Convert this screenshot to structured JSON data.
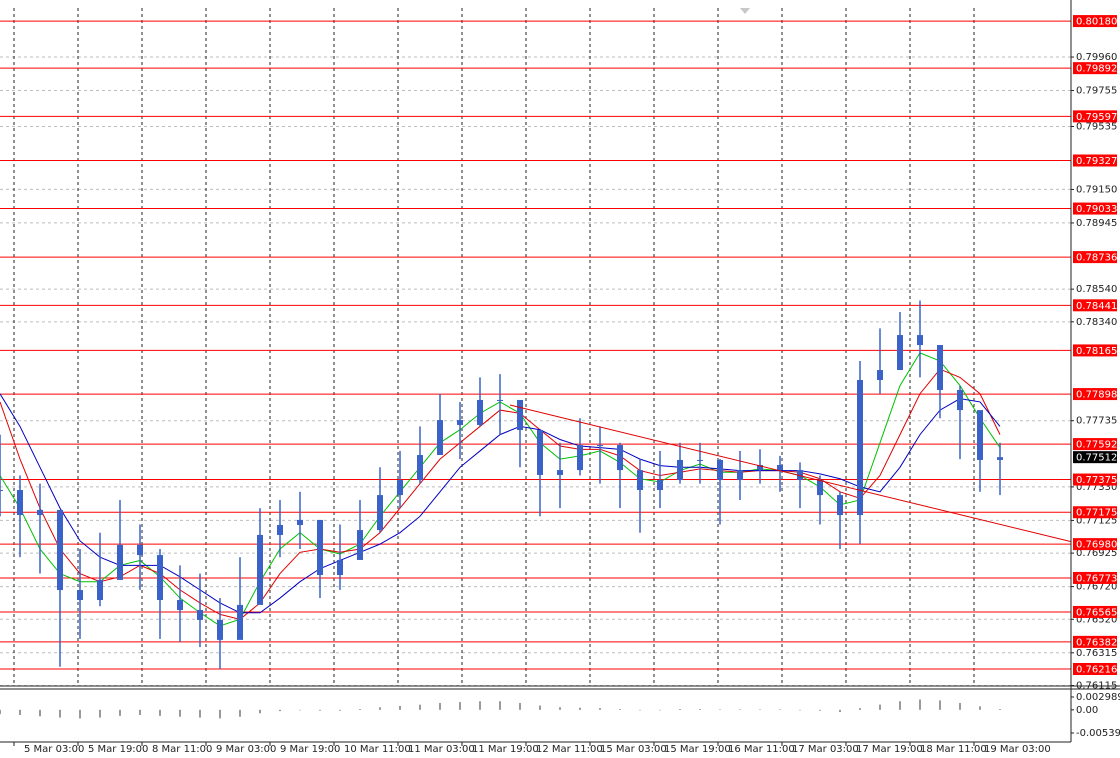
{
  "chart_data": {
    "type": "candlestick",
    "xlim": [
      0,
      53.55
    ],
    "xticks": [
      {
        "value": 0.7,
        "label": "5 Mar 03:00"
      },
      {
        "value": 3.9,
        "label": "5 Mar 19:00"
      },
      {
        "value": 7.1,
        "label": "8 Mar 11:00"
      },
      {
        "value": 10.3,
        "label": "9 Mar 03:00"
      },
      {
        "value": 13.5,
        "label": "9 Mar 19:00"
      },
      {
        "value": 16.7,
        "label": "10 Mar 11:00"
      },
      {
        "value": 19.9,
        "label": "11 Mar 03:00"
      },
      {
        "value": 23.1,
        "label": "11 Mar 19:00"
      },
      {
        "value": 26.3,
        "label": "12 Mar 11:00"
      },
      {
        "value": 29.5,
        "label": "15 Mar 03:00"
      },
      {
        "value": 32.7,
        "label": "15 Mar 19:00"
      },
      {
        "value": 35.9,
        "label": "16 Mar 11:00"
      },
      {
        "value": 39.1,
        "label": "17 Mar 03:00"
      },
      {
        "value": 42.3,
        "label": "17 Mar 19:00"
      },
      {
        "value": 45.5,
        "label": "18 Mar 11:00"
      },
      {
        "value": 48.7,
        "label": "19 Mar 03:00"
      }
    ],
    "ylim": [
      0.76115,
      0.8026
    ],
    "yticks": [
      {
        "value": 0.7996,
        "label": "0.79960"
      },
      0.79755,
      0.79535,
      {
        "value": 0.7915,
        "label": "0.79150"
      },
      0.78945,
      {
        "value": 0.7854,
        "label": "0.78540"
      },
      {
        "value": 0.7834,
        "label": "0.78340"
      },
      0.77735,
      {
        "value": 0.7733,
        "label": "0.77330"
      },
      0.77125,
      0.76925,
      {
        "value": 0.7672,
        "label": "0.76720"
      },
      {
        "value": 0.7652,
        "label": "0.76520"
      },
      0.76315,
      0.76115
    ],
    "grid": true,
    "series": [
      {
        "color": "#3a62c8",
        "close": [
          0.77311,
          0.77158,
          0.77189,
          0.76699,
          0.76638,
          0.76761,
          0.76975,
          0.76913,
          0.76638,
          0.76577,
          0.76516,
          0.76394,
          0.76608,
          0.77036,
          0.77097,
          0.77128,
          0.76791,
          0.76883,
          0.77066,
          0.7728,
          0.77372,
          0.77525,
          0.77739,
          0.77709,
          0.77862,
          0.77862,
          0.77678,
          0.77403,
          0.77433,
          0.77586,
          0.77586,
          0.77433,
          0.77311,
          0.77372,
          0.77495,
          0.77495,
          0.77372,
          0.77433,
          0.77464,
          0.77433,
          0.77372,
          0.7728,
          0.77158,
          0.77984,
          0.78045,
          0.78259,
          0.78198,
          0.77923,
          0.778,
          0.77495,
          0.77512
        ],
        "high": [
          0.7765,
          0.774,
          0.7735,
          0.7705,
          0.7695,
          0.7705,
          0.7725,
          0.771,
          0.7695,
          0.7685,
          0.768,
          0.7665,
          0.769,
          0.772,
          0.7725,
          0.773,
          0.7705,
          0.771,
          0.7725,
          0.7745,
          0.7755,
          0.777,
          0.779,
          0.7785,
          0.78,
          0.7802,
          0.7785,
          0.776,
          0.776,
          0.7775,
          0.777,
          0.776,
          0.775,
          0.7755,
          0.776,
          0.776,
          0.775,
          0.7755,
          0.7756,
          0.7752,
          0.7748,
          0.774,
          0.773,
          0.781,
          0.783,
          0.784,
          0.7847,
          0.7815,
          0.7795,
          0.777,
          0.776
        ],
        "low": [
          0.7715,
          0.769,
          0.768,
          0.7623,
          0.764,
          0.766,
          0.768,
          0.767,
          0.764,
          0.7638,
          0.7635,
          0.76216,
          0.7645,
          0.767,
          0.769,
          0.7695,
          0.7665,
          0.767,
          0.769,
          0.7705,
          0.772,
          0.7735,
          0.7755,
          0.775,
          0.777,
          0.7765,
          0.7745,
          0.7715,
          0.772,
          0.774,
          0.7735,
          0.772,
          0.7705,
          0.772,
          0.7735,
          0.7735,
          0.771,
          0.7725,
          0.7735,
          0.773,
          0.772,
          0.771,
          0.7695,
          0.7698,
          0.779,
          0.781,
          0.78,
          0.7775,
          0.775,
          0.773,
          0.7728
        ]
      }
    ],
    "moving_averages": [
      {
        "color": "#00c000",
        "values": [
          0.774,
          0.772,
          0.7695,
          0.768,
          0.7675,
          0.7675,
          0.7685,
          0.7688,
          0.7678,
          0.7665,
          0.7656,
          0.7648,
          0.7652,
          0.7675,
          0.7695,
          0.7705,
          0.7695,
          0.7692,
          0.7698,
          0.7715,
          0.773,
          0.7745,
          0.776,
          0.7768,
          0.7778,
          0.7785,
          0.7778,
          0.776,
          0.775,
          0.7752,
          0.7755,
          0.7748,
          0.7738,
          0.7736,
          0.7743,
          0.7747,
          0.7742,
          0.7742,
          0.7744,
          0.7743,
          0.774,
          0.7733,
          0.7722,
          0.7725,
          0.776,
          0.7795,
          0.7815,
          0.781,
          0.7795,
          0.7775,
          0.7757
        ]
      },
      {
        "color": "#e00000",
        "values": [
          0.7785,
          0.775,
          0.772,
          0.7695,
          0.768,
          0.7675,
          0.7678,
          0.7685,
          0.768,
          0.767,
          0.7662,
          0.7655,
          0.7652,
          0.7662,
          0.768,
          0.7693,
          0.7695,
          0.7693,
          0.7695,
          0.7705,
          0.772,
          0.7735,
          0.775,
          0.776,
          0.777,
          0.778,
          0.7778,
          0.7768,
          0.7758,
          0.7756,
          0.7756,
          0.7752,
          0.7743,
          0.774,
          0.7742,
          0.7744,
          0.7743,
          0.7742,
          0.7743,
          0.7743,
          0.7742,
          0.7738,
          0.773,
          0.7726,
          0.774,
          0.7765,
          0.779,
          0.7805,
          0.78,
          0.779,
          0.7765
        ]
      },
      {
        "color": "#0000c0",
        "values": [
          0.779,
          0.777,
          0.7745,
          0.772,
          0.77,
          0.769,
          0.7685,
          0.7685,
          0.7685,
          0.7678,
          0.767,
          0.7662,
          0.7656,
          0.7656,
          0.7665,
          0.7675,
          0.7683,
          0.7688,
          0.7693,
          0.7698,
          0.7705,
          0.7715,
          0.773,
          0.7745,
          0.7755,
          0.7765,
          0.777,
          0.7768,
          0.7762,
          0.7758,
          0.7757,
          0.7756,
          0.775,
          0.7746,
          0.7745,
          0.7745,
          0.7744,
          0.7743,
          0.7743,
          0.7743,
          0.7743,
          0.7741,
          0.7738,
          0.7733,
          0.773,
          0.7745,
          0.7765,
          0.778,
          0.7787,
          0.7785,
          0.777
        ]
      }
    ],
    "levels": {
      "color": "#ff0000",
      "values": [
        {
          "value": 0.8018,
          "label": "0.80180"
        },
        0.79892,
        0.79597,
        0.79327,
        0.79033,
        0.78736,
        0.78441,
        0.78165,
        0.77898,
        0.77592,
        0.77375,
        0.77175,
        {
          "value": 0.7698,
          "label": "0.76980"
        },
        0.76773,
        0.76565,
        0.76382,
        0.76216
      ]
    },
    "current_price": 0.77512,
    "trendline": {
      "color": "#e00000",
      "x": [
        25.5,
        53.55
      ],
      "values": [
        0.77831,
        0.76995
      ]
    },
    "oscillator": {
      "type": "bar",
      "color": "#9a9a9a",
      "values": [
        -0.001,
        -0.0012,
        -0.0015,
        -0.0018,
        -0.002,
        -0.0018,
        -0.0014,
        -0.0012,
        -0.0014,
        -0.0016,
        -0.0018,
        -0.002,
        -0.0016,
        -0.0008,
        -0.0003,
        0,
        -0.0002,
        -0.0002,
        0.0002,
        0.0006,
        0.0009,
        0.0012,
        0.0016,
        0.0018,
        0.002,
        0.002,
        0.0016,
        0.001,
        0.0006,
        0.0005,
        0.0004,
        0.0002,
        0,
        0,
        0.0002,
        0.0002,
        0.0001,
        0.0001,
        0.0001,
        0.0001,
        0,
        -0.0002,
        -0.0005,
        0.0004,
        0.0012,
        0.002,
        0.0024,
        0.0022,
        0.0016,
        0.0008,
        0.0002
      ],
      "ylim": [
        -0.005392,
        0.002989
      ],
      "yticks": [
        0.002989,
        {
          "value": 0,
          "label": "0.00"
        },
        -0.005392
      ]
    }
  }
}
